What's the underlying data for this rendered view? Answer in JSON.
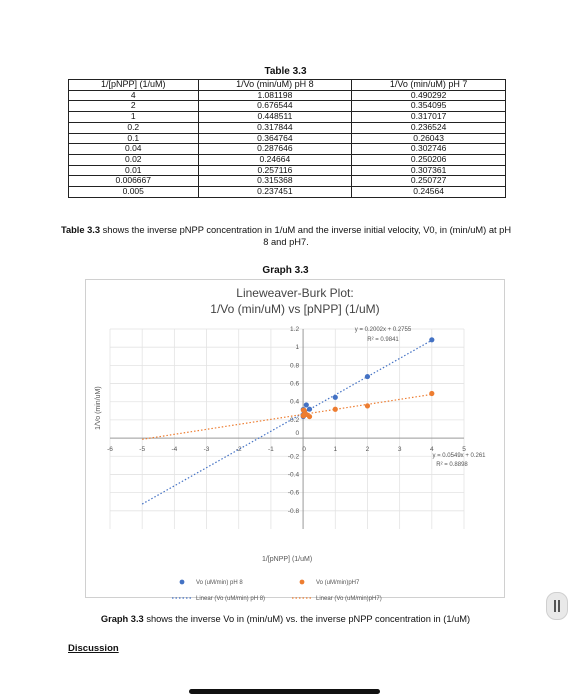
{
  "table": {
    "title": "Table 3.3",
    "headers": [
      "1/[pNPP] (1/uM)",
      "1/Vo (min/uM) pH 8",
      "1/Vo (min/uM) pH 7"
    ],
    "rows": [
      [
        "4",
        "1.081198",
        "0.490292"
      ],
      [
        "2",
        "0.676544",
        "0.354095"
      ],
      [
        "1",
        "0.448511",
        "0.317017"
      ],
      [
        "0.2",
        "0.317844",
        "0.236524"
      ],
      [
        "0.1",
        "0.364764",
        "0.26043"
      ],
      [
        "0.04",
        "0.287646",
        "0.302746"
      ],
      [
        "0.02",
        "0.24664",
        "0.250206"
      ],
      [
        "0.01",
        "0.257116",
        "0.307361"
      ],
      [
        "0.006667",
        "0.315368",
        "0.250727"
      ],
      [
        "0.005",
        "0.237451",
        "0.24564"
      ]
    ],
    "caption_bold": "Table 3.3",
    "caption_rest": " shows the inverse pNPP concentration in 1/uM and the inverse initial velocity, V0, in (min/uM) at pH 8 and pH7."
  },
  "graph": {
    "label": "Graph 3.3",
    "caption_bold": "Graph 3.3",
    "caption_rest": " shows the inverse Vo in (min/uM) vs. the inverse pNPP concentration in (1/uM)"
  },
  "discussion": "Discussion",
  "chart_data": {
    "type": "scatter",
    "title": "Lineweaver-Burk Plot:",
    "subtitle": "1/Vo (min/uM) vs [pNPP] (1/uM)",
    "xlabel": "1/[pNPP] (1/uM)",
    "ylabel": "1/Vo (min/uM)",
    "xlim": [
      -6,
      5
    ],
    "ylim": [
      -1,
      1.2
    ],
    "xticks": [
      -6,
      -5,
      -4,
      -3,
      -2,
      -1,
      0,
      1,
      2,
      3,
      4,
      5
    ],
    "yticks": [
      -0.8,
      -0.6,
      -0.4,
      -0.2,
      0,
      0.2,
      0.4,
      0.6,
      0.8,
      1,
      1.2
    ],
    "ytick_labels": [
      "-0.8",
      "-0.6",
      "-0.4",
      "-0.2",
      "0",
      "0.2",
      "0.4",
      "0.6",
      "0.8",
      "1",
      "1.2"
    ],
    "grid": true,
    "legend_position": "bottom",
    "series": [
      {
        "name": "Vo (uM/min) pH 8",
        "color": "#4472c4",
        "x": [
          4,
          2,
          1,
          0.2,
          0.1,
          0.04,
          0.02,
          0.01,
          0.006667,
          0.005
        ],
        "y": [
          1.081198,
          0.676544,
          0.448511,
          0.317844,
          0.364764,
          0.287646,
          0.24664,
          0.257116,
          0.315368,
          0.237451
        ],
        "trendline": {
          "name": "Linear (Vo (uM/min) pH 8)",
          "slope": 0.2002,
          "intercept": 0.2755,
          "equation": "y = 0.2002x + 0.2755",
          "r2": "R² = 0.9841",
          "x_range": [
            -5,
            4
          ]
        }
      },
      {
        "name": "Vo (uM/min)pH7",
        "color": "#ed7d31",
        "x": [
          4,
          2,
          1,
          0.2,
          0.1,
          0.04,
          0.02,
          0.01,
          0.006667,
          0.005
        ],
        "y": [
          0.490292,
          0.354095,
          0.317017,
          0.236524,
          0.26043,
          0.302746,
          0.250206,
          0.307361,
          0.250727,
          0.24564
        ],
        "trendline": {
          "name": "Linear (Vo (uM/min)pH7)",
          "slope": 0.0549,
          "intercept": 0.261,
          "equation": "y = 0.0549x + 0.261",
          "r2": "R² = 0.8898",
          "x_range": [
            -5,
            4
          ]
        }
      }
    ]
  }
}
